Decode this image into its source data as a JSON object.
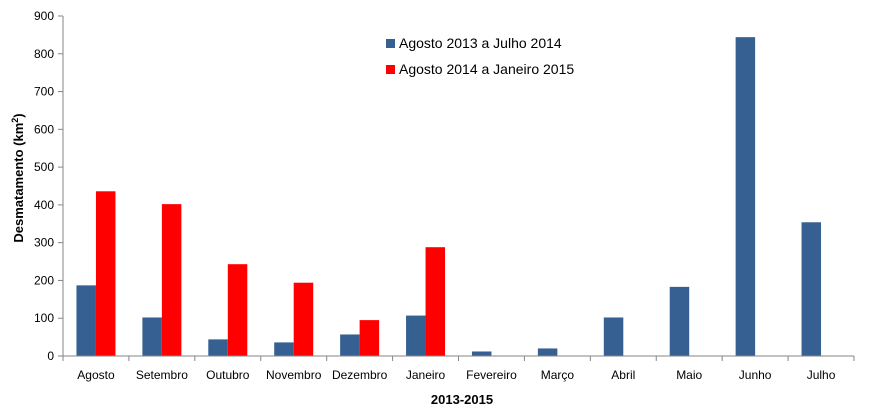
{
  "chart_data": {
    "type": "bar",
    "categories": [
      "Agosto",
      "Setembro",
      "Outubro",
      "Novembro",
      "Dezembro",
      "Janeiro",
      "Fevereiro",
      "Março",
      "Abril",
      "Maio",
      "Junho",
      "Julho"
    ],
    "series": [
      {
        "name": "Agosto 2013 a Julho 2014",
        "color": "#376092",
        "values": [
          187,
          102,
          44,
          36,
          57,
          107,
          12,
          20,
          102,
          183,
          844,
          354
        ]
      },
      {
        "name": "Agosto 2014 a Janeiro 2015",
        "color": "#ff0000",
        "values": [
          436,
          402,
          243,
          194,
          95,
          288,
          null,
          null,
          null,
          null,
          null,
          null
        ]
      }
    ],
    "xlabel": "2013-2015",
    "ylabel_prefix": "Desmatamento (km",
    "ylabel_sup": "2",
    "ylabel_suffix": ")",
    "ylim": [
      0,
      900
    ],
    "yticks": [
      "0",
      "100",
      "200",
      "300",
      "400",
      "500",
      "600",
      "700",
      "800",
      "900"
    ],
    "grid": false,
    "legend_position": "top-center"
  }
}
